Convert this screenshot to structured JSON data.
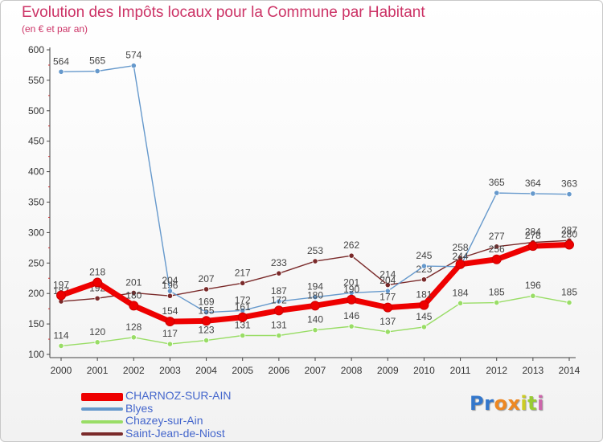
{
  "header": {
    "title": "Evolution des Impôts locaux pour la Commune par Habitant",
    "subtitle": "(en € et par an)"
  },
  "logo": {
    "text": "Proxiti"
  },
  "chart_data": {
    "type": "line",
    "title": "Evolution des Impôts locaux pour la Commune par Habitant",
    "subtitle": "(en € et par an)",
    "xlabel": "",
    "ylabel": "",
    "ylim": [
      100,
      600
    ],
    "yticks": [
      100,
      150,
      200,
      250,
      300,
      350,
      400,
      450,
      500,
      550,
      600
    ],
    "grid": false,
    "categories": [
      "2000",
      "2001",
      "2002",
      "2003",
      "2004",
      "2005",
      "2006",
      "2007",
      "2008",
      "2009",
      "2010",
      "2011",
      "2012",
      "2013",
      "2014"
    ],
    "series": [
      {
        "name": "Saint-Jean-de-Niost",
        "color": "#7a2a2a",
        "style": "thin",
        "values": [
          187,
          192,
          201,
          196,
          207,
          217,
          233,
          253,
          262,
          214,
          223,
          258,
          277,
          284,
          287
        ],
        "labels": [
          "187",
          "192",
          "201",
          "196",
          "207",
          "217",
          "233",
          "253",
          "262",
          "214",
          "223",
          "258",
          "277",
          "284",
          "287"
        ]
      },
      {
        "name": "Chazey-sur-Ain",
        "color": "#99dd66",
        "style": "thin",
        "values": [
          114,
          120,
          128,
          117,
          123,
          131,
          131,
          140,
          146,
          137,
          145,
          184,
          185,
          196,
          185
        ],
        "labels": [
          "114",
          "120",
          "128",
          "117",
          "123",
          "131",
          "131",
          "140",
          "146",
          "137",
          "145",
          "184",
          "185",
          "196",
          "185"
        ]
      },
      {
        "name": "Blyes",
        "color": "#6699cc",
        "style": "thin",
        "values": [
          564,
          565,
          574,
          204,
          169,
          172,
          187,
          194,
          201,
          204,
          245,
          244,
          365,
          364,
          363
        ],
        "labels": [
          "564",
          "565",
          "574",
          "204",
          "169",
          "172",
          "187",
          "194",
          "201",
          "204",
          "245",
          "244",
          "365",
          "364",
          "363"
        ]
      },
      {
        "name": "CHARNOZ-SUR-AIN",
        "color": "#ee0000",
        "style": "thick",
        "values": [
          197,
          218,
          180,
          154,
          155,
          161,
          172,
          180,
          190,
          177,
          181,
          248,
          256,
          278,
          280
        ],
        "labels": [
          "197",
          "218",
          "180",
          "154",
          "155",
          "161",
          "172",
          "180",
          "190",
          "177",
          "181",
          "",
          "256",
          "278",
          "280"
        ]
      }
    ],
    "legend": [
      "CHARNOZ-SUR-AIN",
      "Blyes",
      "Chazey-sur-Ain",
      "Saint-Jean-de-Niost"
    ],
    "legend_position": "bottom-left"
  }
}
